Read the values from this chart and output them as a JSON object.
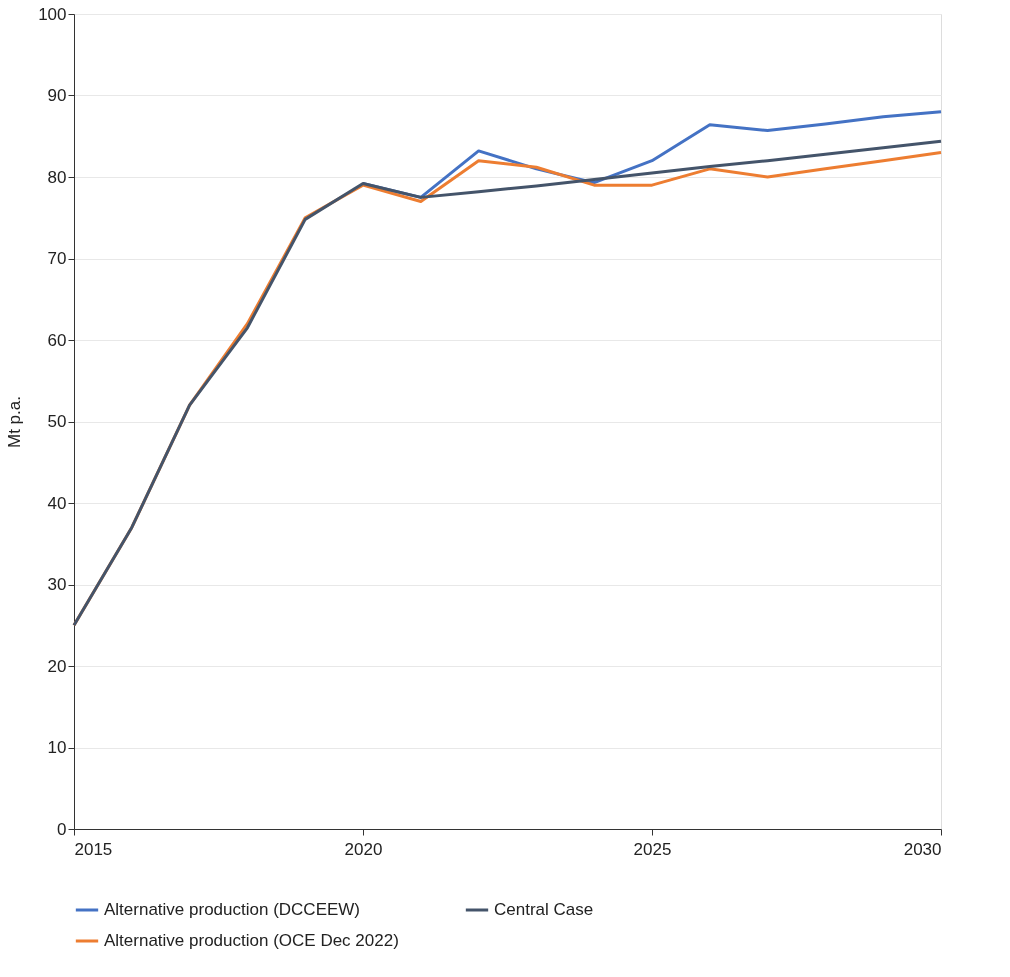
{
  "chart_data": {
    "type": "line",
    "ylabel": "Mt p.a.",
    "x": [
      2015,
      2016,
      2017,
      2018,
      2019,
      2020,
      2021,
      2022,
      2023,
      2024,
      2025,
      2026,
      2027,
      2028,
      2029,
      2030
    ],
    "series": [
      {
        "name": "Alternative production (DCCEEW)",
        "color": "#4472c4",
        "values": [
          null,
          null,
          null,
          null,
          null,
          79.2,
          77.5,
          83.2,
          81,
          79.3,
          82,
          86.4,
          85.7,
          86.5,
          87.4,
          88
        ]
      },
      {
        "name": "Central Case",
        "color": "#44546a",
        "values": [
          25,
          37,
          52,
          61.5,
          74.8,
          79.2,
          77.5,
          78.2,
          78.9,
          79.7,
          80.5,
          81.3,
          82,
          82.8,
          83.6,
          84.4
        ]
      },
      {
        "name": "Alternative production (OCE Dec 2022)",
        "color": "#ed7d31",
        "values": [
          25,
          37,
          52,
          62,
          75,
          79,
          77,
          82,
          81.2,
          79,
          79,
          81,
          80,
          81,
          82,
          83
        ]
      }
    ],
    "xlim": [
      2015,
      2030
    ],
    "xticks": [
      2015,
      2020,
      2025,
      2030
    ],
    "ylim": [
      0,
      100
    ],
    "yticks": [
      0,
      10,
      20,
      30,
      40,
      50,
      60,
      70,
      80,
      90,
      100
    ],
    "grid": "y",
    "legend": "bottom",
    "marker": "none",
    "line_style": "solid"
  }
}
